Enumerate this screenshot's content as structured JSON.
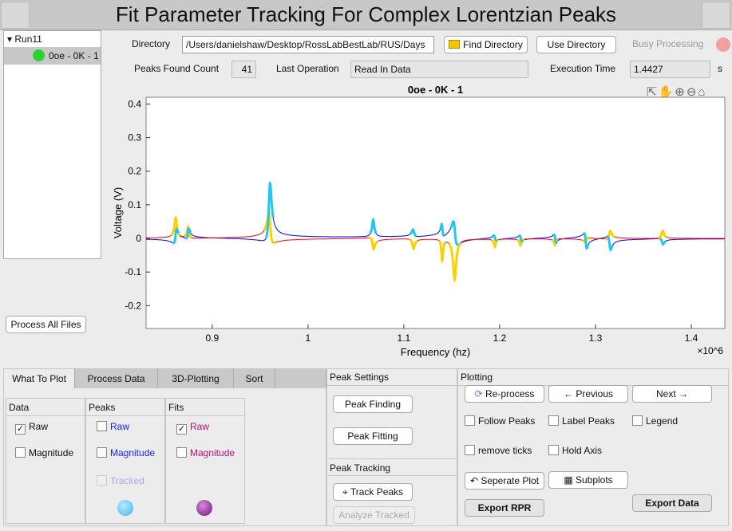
{
  "title": "Fit Parameter Tracking For Complex Lorentzian Peaks",
  "tree": {
    "root": "Run11",
    "item": "0oe - 0K - 1"
  },
  "top": {
    "directory_label": "Directory",
    "directory_value": "/Users/danielshaw/Desktop/RossLabBestLab/RUS/Days",
    "find_directory": "Find Directory",
    "use_directory": "Use Directory",
    "busy": "Busy Processing",
    "peaks_found_label": "Peaks Found Count",
    "peaks_found": "41",
    "last_op_label": "Last Operation",
    "last_op": "Read In Data",
    "exec_label": "Execution Time",
    "exec_value": "1.4427",
    "exec_unit": "s"
  },
  "process_all": "Process All Files",
  "chart_data": {
    "type": "line",
    "title": "0oe - 0K - 1",
    "xlabel": "Frequency (hz)",
    "ylabel": "Voltage (V)",
    "x_multiplier": "×10^6",
    "xlim": [
      831000,
      1435000
    ],
    "ylim": [
      -0.268,
      0.42
    ],
    "xticks": [
      {
        "v": 900000,
        "l": "0.9"
      },
      {
        "v": 1000000,
        "l": "1"
      },
      {
        "v": 1100000,
        "l": "1.1"
      },
      {
        "v": 1200000,
        "l": "1.2"
      },
      {
        "v": 1300000,
        "l": "1.3"
      },
      {
        "v": 1400000,
        "l": "1.4"
      }
    ],
    "yticks": [
      {
        "v": 0.4,
        "l": "0.4"
      },
      {
        "v": 0.3,
        "l": "0.3"
      },
      {
        "v": 0.2,
        "l": "0.2"
      },
      {
        "v": 0.1,
        "l": "0.1"
      },
      {
        "v": 0,
        "l": "0"
      },
      {
        "v": -0.1,
        "l": "-0.1"
      },
      {
        "v": -0.2,
        "l": "-0.2"
      }
    ],
    "peaks": [
      {
        "f": 862000,
        "a": 0.06,
        "g": 1500
      },
      {
        "f": 875000,
        "a": 0.05,
        "g": 1200
      },
      {
        "f": 960000,
        "a": 0.32,
        "g": 1800
      },
      {
        "f": 1068000,
        "a": 0.1,
        "g": 1500
      },
      {
        "f": 1110000,
        "a": 0.04,
        "g": 1500
      },
      {
        "f": 1140000,
        "a": 0.06,
        "g": 1000
      },
      {
        "f": 1153000,
        "a": 0.1,
        "g": 2000
      },
      {
        "f": 1195000,
        "a": 0.02,
        "g": 1200
      },
      {
        "f": 1222000,
        "a": 0.02,
        "g": 1200
      },
      {
        "f": 1258000,
        "a": 0.03,
        "g": 1000
      },
      {
        "f": 1290000,
        "a": 0.06,
        "g": 1200
      },
      {
        "f": 1315000,
        "a": 0.06,
        "g": 1500
      },
      {
        "f": 1370000,
        "a": 0.03,
        "g": 1500
      }
    ],
    "series": [
      {
        "name": "Raw data",
        "color": "#0000ff"
      },
      {
        "name": "Fit",
        "color": "#ff0000"
      },
      {
        "name": "Peak fit highlight",
        "color": "#ffd000"
      },
      {
        "name": "Peaks",
        "color": "#20c8f0"
      }
    ]
  },
  "tabs": [
    "What To Plot",
    "Process Data",
    "3D-Plotting",
    "Sort"
  ],
  "what": {
    "data": "Data",
    "peaks": "Peaks",
    "fits": "Fits",
    "raw": "Raw",
    "magnitude": "Magnitude",
    "tracked": "Tracked"
  },
  "peak_settings": {
    "title": "Peak Settings",
    "finding": "Peak Finding",
    "fitting": "Peak Fitting"
  },
  "peak_tracking": {
    "title": "Peak Tracking",
    "track": "Track Peaks",
    "analyze": "Analyze Tracked"
  },
  "plotting": {
    "title": "Plotting",
    "reprocess": "Re-process",
    "previous": "← Previous",
    "next": "Next →",
    "follow": "Follow Peaks",
    "label": "Label Peaks",
    "legend": "Legend",
    "remove_ticks": "remove ticks",
    "hold": "Hold Axis",
    "separate": "Seperate Plot",
    "subplots": "Subplots",
    "export_rpr": "Export RPR",
    "export_data": "Export Data"
  }
}
